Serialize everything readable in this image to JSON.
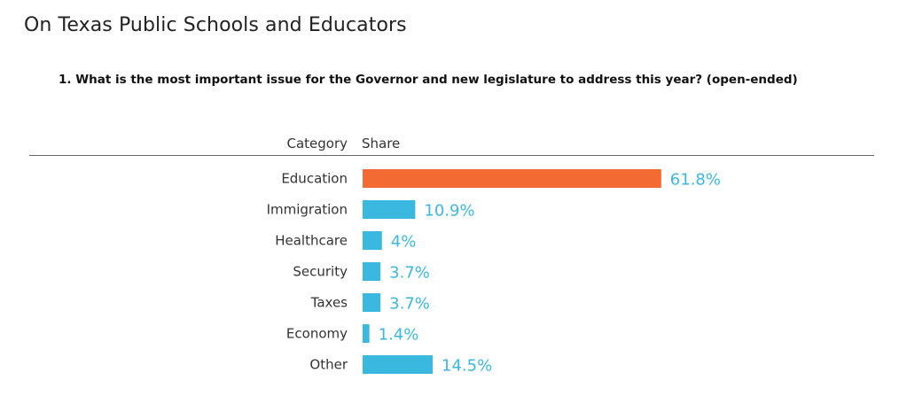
{
  "page": {
    "title": "On Texas Public Schools and Educators",
    "question": "1. What is the most important issue for the Governor and new legislature to address this year? (open-ended)"
  },
  "colors": {
    "highlight": "#f36a32",
    "bar": "#3bb8e0",
    "value_text": "#3bb8e0",
    "axis_line": "#666666"
  },
  "chart_data": {
    "type": "bar",
    "orientation": "horizontal",
    "column_headers": {
      "category": "Category",
      "value": "Share"
    },
    "categories": [
      "Education",
      "Immigration",
      "Healthcare",
      "Security",
      "Taxes",
      "Economy",
      "Other"
    ],
    "values": [
      61.8,
      10.9,
      4,
      3.7,
      3.7,
      1.4,
      14.5
    ],
    "value_labels": [
      "61.8%",
      "10.9%",
      "4%",
      "3.7%",
      "3.7%",
      "1.4%",
      "14.5%"
    ],
    "highlighted_category": "Education",
    "xlim": [
      0,
      100
    ],
    "grid": false,
    "legend": "none"
  }
}
